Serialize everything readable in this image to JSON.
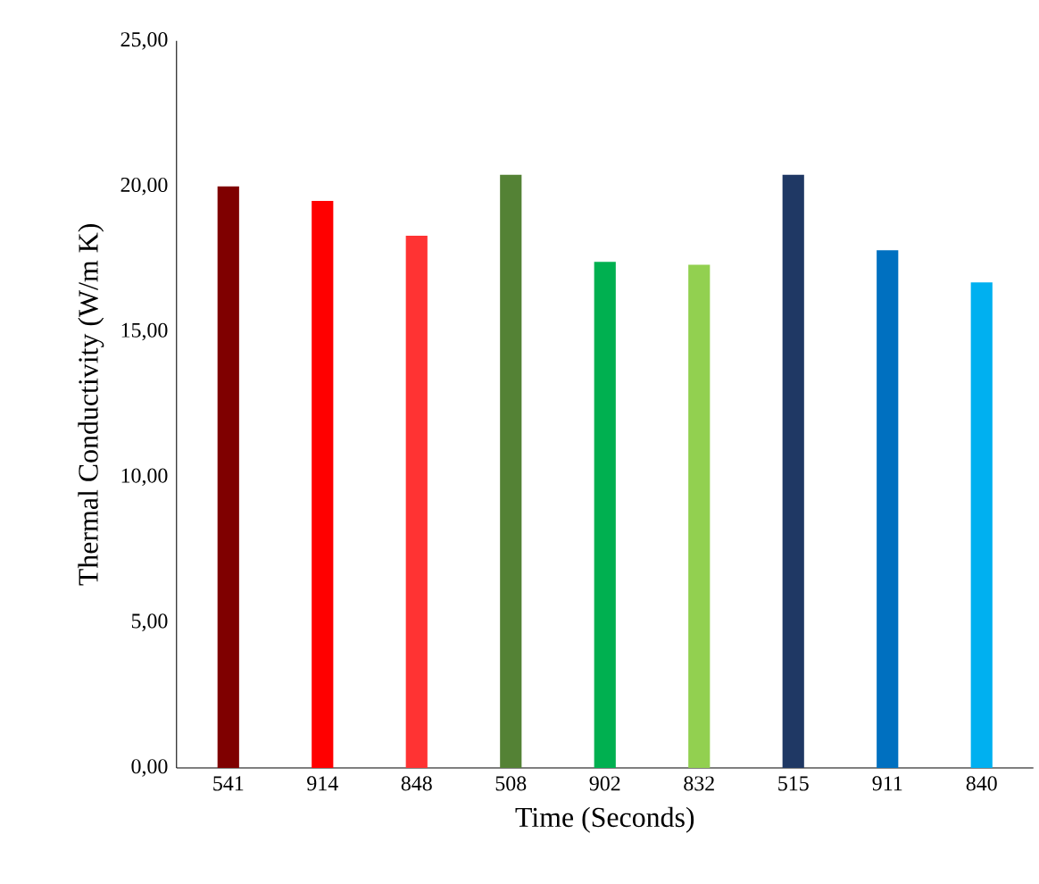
{
  "chart_data": {
    "type": "bar",
    "xlabel": "Time (Seconds)",
    "ylabel": "Thermal Conductivity (W/m K)",
    "categories": [
      "541",
      "914",
      "848",
      "508",
      "902",
      "832",
      "515",
      "911",
      "840"
    ],
    "values": [
      20.0,
      19.5,
      18.3,
      20.4,
      17.4,
      17.3,
      20.4,
      17.8,
      16.7
    ],
    "colors": [
      "#7f0000",
      "#ff0000",
      "#ff3333",
      "#548235",
      "#00b050",
      "#92d050",
      "#1f3864",
      "#0070c0",
      "#00b0f0"
    ],
    "ylim": [
      0,
      25
    ],
    "yticks": [
      {
        "value": 0,
        "label": "0,00"
      },
      {
        "value": 5,
        "label": "5,00"
      },
      {
        "value": 10,
        "label": "10,00"
      },
      {
        "value": 15,
        "label": "15,00"
      },
      {
        "value": 20,
        "label": "20,00"
      },
      {
        "value": 25,
        "label": "25,00"
      }
    ],
    "grid": false
  }
}
